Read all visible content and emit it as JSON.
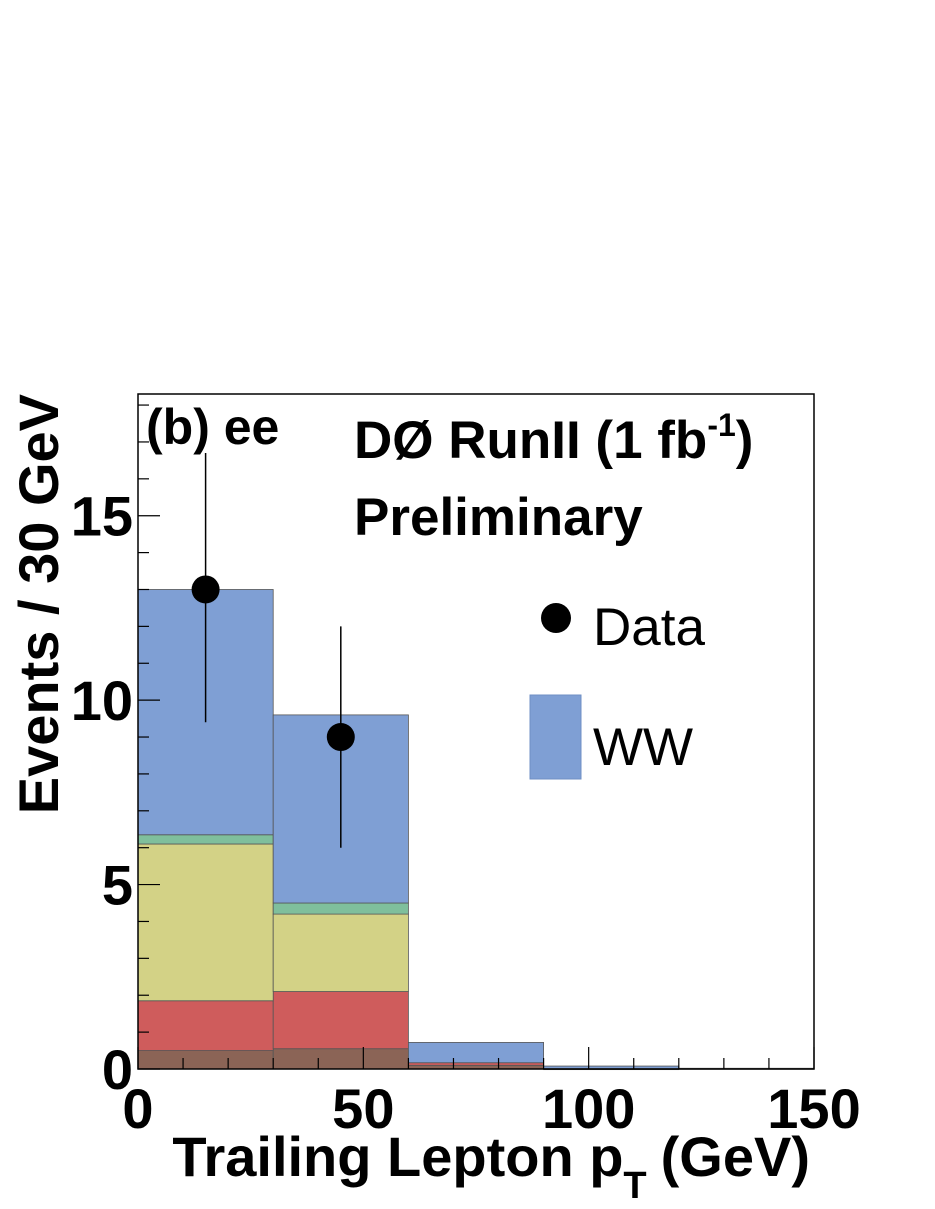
{
  "chart_data": {
    "type": "bar",
    "stacked": true,
    "panel_label": "(b) ee",
    "experiment": "DØ RunII (1 fb",
    "experiment_sup": "-1",
    "experiment_close": ")",
    "status": "Preliminary",
    "xlabel": "Trailing Lepton p",
    "xlabel_sub": "T",
    "xlabel_unit": "(GeV)",
    "ylabel": "Events / 30 GeV",
    "xlim": [
      0,
      150
    ],
    "ylim": [
      0,
      18.3
    ],
    "x_ticks": [
      0,
      50,
      100,
      150
    ],
    "x_tick_labels": [
      "0",
      "50",
      "100",
      "150"
    ],
    "y_ticks": [
      0,
      5,
      10,
      15
    ],
    "y_tick_labels": [
      "0",
      "5",
      "10",
      "15"
    ],
    "bin_edges": [
      0,
      30,
      60,
      90,
      120,
      150
    ],
    "stack_series": [
      {
        "values": [
          0.5,
          0.55,
          0.1,
          0.0,
          0.0
        ],
        "color": "#8b6456"
      },
      {
        "values": [
          1.35,
          1.55,
          0.07,
          0.01,
          0.0
        ],
        "color": "#cf5c5c"
      },
      {
        "values": [
          4.25,
          2.1,
          0.0,
          0.0,
          0.0
        ],
        "color": "#d3d286"
      },
      {
        "values": [
          0.25,
          0.3,
          0.0,
          0.0,
          0.0
        ],
        "color": "#7fbf9c"
      },
      {
        "name": "WW",
        "values": [
          6.65,
          5.1,
          0.55,
          0.07,
          0.02
        ],
        "color": "#7f9fd4"
      }
    ],
    "data_points": {
      "name": "Data",
      "x": [
        15,
        45
      ],
      "y": [
        13,
        9
      ],
      "err_low": [
        3.6,
        3.0
      ],
      "err_high": [
        3.7,
        3.0
      ]
    },
    "legend_placement": "top-right",
    "grid": false
  }
}
